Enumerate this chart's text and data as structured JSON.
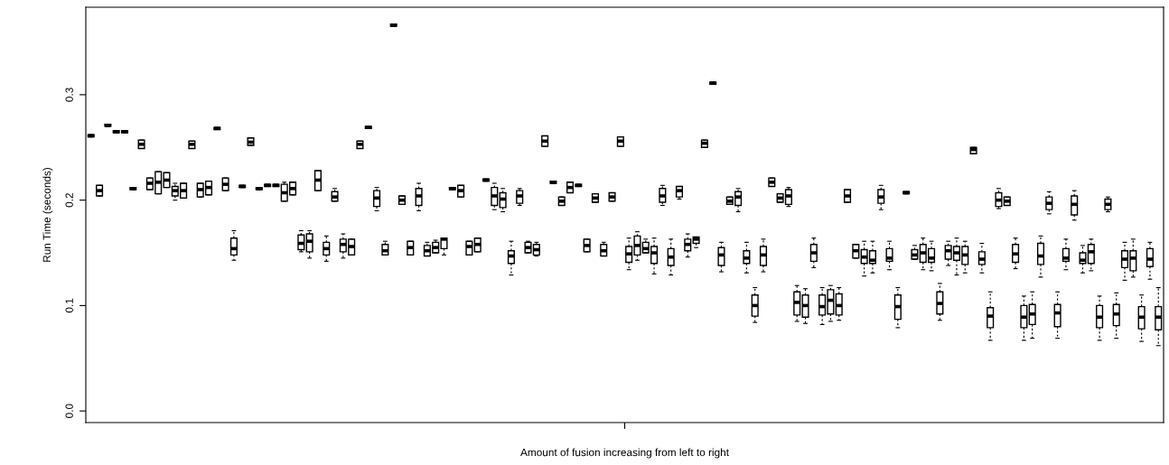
{
  "chart_data": {
    "type": "box",
    "xlabel": "Amount of fusion increasing from left to right",
    "ylabel": "Run Time (seconds)",
    "categories": [
      null,
      null,
      null,
      null,
      null,
      null,
      null,
      null,
      null,
      null,
      null,
      null,
      null,
      null,
      null,
      null,
      null,
      null,
      null,
      null,
      null,
      null,
      null,
      null,
      null,
      null,
      null,
      null,
      null,
      null,
      null,
      null,
      null,
      null,
      null,
      null,
      null,
      null,
      null,
      null,
      null,
      null,
      null,
      null,
      null,
      null,
      null,
      null,
      null,
      null,
      null,
      null,
      null,
      null,
      null,
      null,
      null,
      null,
      null,
      null,
      null,
      null,
      null,
      null,
      null,
      null,
      null,
      null,
      null,
      null,
      null,
      null,
      null,
      null,
      null,
      null,
      null,
      null,
      null,
      null,
      null,
      null,
      null,
      null,
      null,
      null,
      null,
      null,
      null,
      null,
      null,
      null,
      null,
      null,
      null,
      null,
      null,
      null,
      null,
      null,
      null,
      null,
      null,
      null,
      null,
      null,
      null,
      null,
      null,
      null,
      null,
      null,
      null,
      null,
      null,
      null,
      null,
      null,
      null,
      null,
      null,
      null,
      null,
      null,
      null,
      null,
      null,
      null
    ],
    "ylim": [
      -0.011,
      0.383
    ],
    "yticks": [
      {
        "value": 0,
        "label": "0.0"
      },
      {
        "value": 0.1,
        "label": "0.1"
      },
      {
        "value": 0.2,
        "label": "0.2"
      },
      {
        "value": 0.3,
        "label": "0.3"
      }
    ],
    "tick_labels": "y",
    "boxes": [
      {
        "low": 0.26,
        "q1": 0.26,
        "median": 0.261,
        "q3": 0.262,
        "high": 0.262
      },
      {
        "low": 0.204,
        "q1": 0.204,
        "median": 0.209,
        "q3": 0.214,
        "high": 0.214
      },
      {
        "low": 0.27,
        "q1": 0.27,
        "median": 0.271,
        "q3": 0.272,
        "high": 0.272
      },
      {
        "low": 0.264,
        "q1": 0.264,
        "median": 0.265,
        "q3": 0.266,
        "high": 0.266
      },
      {
        "low": 0.264,
        "q1": 0.264,
        "median": 0.265,
        "q3": 0.266,
        "high": 0.266
      },
      {
        "low": 0.21,
        "q1": 0.21,
        "median": 0.211,
        "q3": 0.212,
        "high": 0.212
      },
      {
        "low": 0.249,
        "q1": 0.249,
        "median": 0.253,
        "q3": 0.257,
        "high": 0.257
      },
      {
        "low": 0.21,
        "q1": 0.21,
        "median": 0.216,
        "q3": 0.221,
        "high": 0.221
      },
      {
        "low": 0.206,
        "q1": 0.206,
        "median": 0.217,
        "q3": 0.227,
        "high": 0.227
      },
      {
        "low": 0.212,
        "q1": 0.212,
        "median": 0.219,
        "q3": 0.226,
        "high": 0.226
      },
      {
        "low": 0.2,
        "q1": 0.204,
        "median": 0.209,
        "q3": 0.213,
        "high": 0.216
      },
      {
        "low": 0.202,
        "q1": 0.202,
        "median": 0.209,
        "q3": 0.216,
        "high": 0.216
      },
      {
        "low": 0.249,
        "q1": 0.249,
        "median": 0.253,
        "q3": 0.256,
        "high": 0.256
      },
      {
        "low": 0.203,
        "q1": 0.203,
        "median": 0.21,
        "q3": 0.216,
        "high": 0.216
      },
      {
        "low": 0.205,
        "q1": 0.205,
        "median": 0.212,
        "q3": 0.218,
        "high": 0.218
      },
      {
        "low": 0.267,
        "q1": 0.267,
        "median": 0.268,
        "q3": 0.269,
        "high": 0.269
      },
      {
        "low": 0.209,
        "q1": 0.209,
        "median": 0.215,
        "q3": 0.221,
        "high": 0.221
      },
      {
        "low": 0.143,
        "q1": 0.148,
        "median": 0.154,
        "q3": 0.164,
        "high": 0.171
      },
      {
        "low": 0.212,
        "q1": 0.212,
        "median": 0.213,
        "q3": 0.214,
        "high": 0.214
      },
      {
        "low": 0.252,
        "q1": 0.252,
        "median": 0.255,
        "q3": 0.259,
        "high": 0.259
      },
      {
        "low": 0.21,
        "q1": 0.21,
        "median": 0.211,
        "q3": 0.212,
        "high": 0.212
      },
      {
        "low": 0.213,
        "q1": 0.213,
        "median": 0.214,
        "q3": 0.215,
        "high": 0.215
      },
      {
        "low": 0.213,
        "q1": 0.213,
        "median": 0.214,
        "q3": 0.215,
        "high": 0.215
      },
      {
        "low": 0.199,
        "q1": 0.199,
        "median": 0.207,
        "q3": 0.215,
        "high": 0.217
      },
      {
        "low": 0.205,
        "q1": 0.205,
        "median": 0.211,
        "q3": 0.217,
        "high": 0.217
      },
      {
        "low": 0.151,
        "q1": 0.153,
        "median": 0.159,
        "q3": 0.167,
        "high": 0.171
      },
      {
        "low": 0.145,
        "q1": 0.151,
        "median": 0.161,
        "q3": 0.168,
        "high": 0.171
      },
      {
        "low": 0.209,
        "q1": 0.209,
        "median": 0.219,
        "q3": 0.228,
        "high": 0.228
      },
      {
        "low": 0.142,
        "q1": 0.148,
        "median": 0.154,
        "q3": 0.16,
        "high": 0.166
      },
      {
        "low": 0.199,
        "q1": 0.199,
        "median": 0.203,
        "q3": 0.208,
        "high": 0.211
      },
      {
        "low": 0.145,
        "q1": 0.151,
        "median": 0.158,
        "q3": 0.163,
        "high": 0.168
      },
      {
        "low": 0.148,
        "q1": 0.148,
        "median": 0.156,
        "q3": 0.163,
        "high": 0.163
      },
      {
        "low": 0.249,
        "q1": 0.249,
        "median": 0.253,
        "q3": 0.256,
        "high": 0.256
      },
      {
        "low": 0.268,
        "q1": 0.268,
        "median": 0.269,
        "q3": 0.27,
        "high": 0.27
      },
      {
        "low": 0.19,
        "q1": 0.194,
        "median": 0.202,
        "q3": 0.209,
        "high": 0.212
      },
      {
        "low": 0.148,
        "q1": 0.148,
        "median": 0.152,
        "q3": 0.158,
        "high": 0.161
      },
      {
        "low": 0.365,
        "q1": 0.365,
        "median": 0.366,
        "q3": 0.367,
        "high": 0.367
      },
      {
        "low": 0.196,
        "q1": 0.196,
        "median": 0.2,
        "q3": 0.204,
        "high": 0.204
      },
      {
        "low": 0.148,
        "q1": 0.148,
        "median": 0.155,
        "q3": 0.161,
        "high": 0.161
      },
      {
        "low": 0.19,
        "q1": 0.195,
        "median": 0.204,
        "q3": 0.211,
        "high": 0.216
      },
      {
        "low": 0.147,
        "q1": 0.147,
        "median": 0.152,
        "q3": 0.157,
        "high": 0.16
      },
      {
        "low": 0.15,
        "q1": 0.15,
        "median": 0.155,
        "q3": 0.16,
        "high": 0.162
      },
      {
        "low": 0.148,
        "q1": 0.154,
        "median": 0.163,
        "q3": 0.164,
        "high": 0.164
      },
      {
        "low": 0.21,
        "q1": 0.21,
        "median": 0.211,
        "q3": 0.212,
        "high": 0.212
      },
      {
        "low": 0.203,
        "q1": 0.203,
        "median": 0.209,
        "q3": 0.214,
        "high": 0.214
      },
      {
        "low": 0.148,
        "q1": 0.148,
        "median": 0.156,
        "q3": 0.161,
        "high": 0.161
      },
      {
        "low": 0.151,
        "q1": 0.151,
        "median": 0.158,
        "q3": 0.164,
        "high": 0.164
      },
      {
        "low": 0.218,
        "q1": 0.218,
        "median": 0.219,
        "q3": 0.22,
        "high": 0.22
      },
      {
        "low": 0.191,
        "q1": 0.195,
        "median": 0.204,
        "q3": 0.212,
        "high": 0.216
      },
      {
        "low": 0.189,
        "q1": 0.193,
        "median": 0.201,
        "q3": 0.207,
        "high": 0.211
      },
      {
        "low": 0.129,
        "q1": 0.14,
        "median": 0.147,
        "q3": 0.152,
        "high": 0.161
      },
      {
        "low": 0.195,
        "q1": 0.197,
        "median": 0.204,
        "q3": 0.209,
        "high": 0.211
      },
      {
        "low": 0.15,
        "q1": 0.15,
        "median": 0.155,
        "q3": 0.16,
        "high": 0.161
      },
      {
        "low": 0.147,
        "q1": 0.148,
        "median": 0.153,
        "q3": 0.158,
        "high": 0.16
      },
      {
        "low": 0.251,
        "q1": 0.251,
        "median": 0.256,
        "q3": 0.261,
        "high": 0.261
      },
      {
        "low": 0.216,
        "q1": 0.216,
        "median": 0.217,
        "q3": 0.218,
        "high": 0.218
      },
      {
        "low": 0.195,
        "q1": 0.195,
        "median": 0.199,
        "q3": 0.203,
        "high": 0.203
      },
      {
        "low": 0.207,
        "q1": 0.207,
        "median": 0.212,
        "q3": 0.217,
        "high": 0.217
      },
      {
        "low": 0.213,
        "q1": 0.213,
        "median": 0.214,
        "q3": 0.215,
        "high": 0.215
      },
      {
        "low": 0.151,
        "q1": 0.151,
        "median": 0.157,
        "q3": 0.163,
        "high": 0.163
      },
      {
        "low": 0.198,
        "q1": 0.198,
        "median": 0.202,
        "q3": 0.206,
        "high": 0.206
      },
      {
        "low": 0.147,
        "q1": 0.147,
        "median": 0.152,
        "q3": 0.158,
        "high": 0.16
      },
      {
        "low": 0.199,
        "q1": 0.199,
        "median": 0.203,
        "q3": 0.207,
        "high": 0.207
      },
      {
        "low": 0.251,
        "q1": 0.251,
        "median": 0.256,
        "q3": 0.26,
        "high": 0.26
      },
      {
        "low": 0.134,
        "q1": 0.141,
        "median": 0.149,
        "q3": 0.156,
        "high": 0.164
      },
      {
        "low": 0.143,
        "q1": 0.148,
        "median": 0.157,
        "q3": 0.166,
        "high": 0.17
      },
      {
        "low": 0.15,
        "q1": 0.15,
        "median": 0.154,
        "q3": 0.16,
        "high": 0.163
      },
      {
        "low": 0.13,
        "q1": 0.14,
        "median": 0.15,
        "q3": 0.156,
        "high": 0.164
      },
      {
        "low": 0.195,
        "q1": 0.198,
        "median": 0.204,
        "q3": 0.211,
        "high": 0.214
      },
      {
        "low": 0.129,
        "q1": 0.138,
        "median": 0.146,
        "q3": 0.154,
        "high": 0.163
      },
      {
        "low": 0.201,
        "q1": 0.203,
        "median": 0.209,
        "q3": 0.213,
        "high": 0.213
      },
      {
        "low": 0.146,
        "q1": 0.152,
        "median": 0.158,
        "q3": 0.163,
        "high": 0.168
      },
      {
        "low": 0.155,
        "q1": 0.159,
        "median": 0.163,
        "q3": 0.165,
        "high": 0.165
      },
      {
        "low": 0.25,
        "q1": 0.25,
        "median": 0.254,
        "q3": 0.257,
        "high": 0.257
      },
      {
        "low": 0.31,
        "q1": 0.31,
        "median": 0.311,
        "q3": 0.312,
        "high": 0.312
      },
      {
        "low": 0.132,
        "q1": 0.138,
        "median": 0.148,
        "q3": 0.155,
        "high": 0.16
      },
      {
        "low": 0.196,
        "q1": 0.196,
        "median": 0.199,
        "q3": 0.203,
        "high": 0.203
      },
      {
        "low": 0.189,
        "q1": 0.195,
        "median": 0.203,
        "q3": 0.208,
        "high": 0.211
      },
      {
        "low": 0.131,
        "q1": 0.14,
        "median": 0.145,
        "q3": 0.152,
        "high": 0.16
      },
      {
        "low": 0.084,
        "q1": 0.09,
        "median": 0.1,
        "q3": 0.11,
        "high": 0.117
      },
      {
        "low": 0.132,
        "q1": 0.138,
        "median": 0.148,
        "q3": 0.156,
        "high": 0.163
      },
      {
        "low": 0.213,
        "q1": 0.213,
        "median": 0.217,
        "q3": 0.221,
        "high": 0.221
      },
      {
        "low": 0.198,
        "q1": 0.198,
        "median": 0.202,
        "q3": 0.206,
        "high": 0.206
      },
      {
        "low": 0.194,
        "q1": 0.196,
        "median": 0.204,
        "q3": 0.21,
        "high": 0.212
      },
      {
        "low": 0.085,
        "q1": 0.091,
        "median": 0.103,
        "q3": 0.113,
        "high": 0.119
      },
      {
        "low": 0.083,
        "q1": 0.089,
        "median": 0.1,
        "q3": 0.11,
        "high": 0.116
      },
      {
        "low": 0.136,
        "q1": 0.142,
        "median": 0.15,
        "q3": 0.158,
        "high": 0.164
      },
      {
        "low": 0.082,
        "q1": 0.091,
        "median": 0.099,
        "q3": 0.11,
        "high": 0.117
      },
      {
        "low": 0.085,
        "q1": 0.092,
        "median": 0.105,
        "q3": 0.115,
        "high": 0.119
      },
      {
        "low": 0.086,
        "q1": 0.091,
        "median": 0.1,
        "q3": 0.111,
        "high": 0.117
      },
      {
        "low": 0.198,
        "q1": 0.198,
        "median": 0.204,
        "q3": 0.21,
        "high": 0.21
      },
      {
        "low": 0.145,
        "q1": 0.145,
        "median": 0.152,
        "q3": 0.158,
        "high": 0.158
      },
      {
        "low": 0.128,
        "q1": 0.14,
        "median": 0.146,
        "q3": 0.153,
        "high": 0.161
      },
      {
        "low": 0.131,
        "q1": 0.14,
        "median": 0.143,
        "q3": 0.152,
        "high": 0.161
      },
      {
        "low": 0.191,
        "q1": 0.197,
        "median": 0.203,
        "q3": 0.21,
        "high": 0.214
      },
      {
        "low": 0.134,
        "q1": 0.142,
        "median": 0.145,
        "q3": 0.154,
        "high": 0.161
      },
      {
        "low": 0.079,
        "q1": 0.087,
        "median": 0.099,
        "q3": 0.11,
        "high": 0.117
      },
      {
        "low": 0.206,
        "q1": 0.206,
        "median": 0.207,
        "q3": 0.208,
        "high": 0.208
      },
      {
        "low": 0.144,
        "q1": 0.144,
        "median": 0.148,
        "q3": 0.153,
        "high": 0.157
      },
      {
        "low": 0.134,
        "q1": 0.141,
        "median": 0.15,
        "q3": 0.158,
        "high": 0.164
      },
      {
        "low": 0.133,
        "q1": 0.141,
        "median": 0.145,
        "q3": 0.154,
        "high": 0.161
      },
      {
        "low": 0.086,
        "q1": 0.092,
        "median": 0.102,
        "q3": 0.113,
        "high": 0.121
      },
      {
        "low": 0.138,
        "q1": 0.144,
        "median": 0.152,
        "q3": 0.157,
        "high": 0.161
      },
      {
        "low": 0.129,
        "q1": 0.143,
        "median": 0.15,
        "q3": 0.156,
        "high": 0.164
      },
      {
        "low": 0.131,
        "q1": 0.139,
        "median": 0.148,
        "q3": 0.156,
        "high": 0.161
      },
      {
        "low": 0.244,
        "q1": 0.244,
        "median": 0.248,
        "q3": 0.25,
        "high": 0.25
      },
      {
        "low": 0.131,
        "q1": 0.139,
        "median": 0.144,
        "q3": 0.151,
        "high": 0.159
      },
      {
        "low": 0.067,
        "q1": 0.079,
        "median": 0.09,
        "q3": 0.098,
        "high": 0.113
      },
      {
        "low": 0.192,
        "q1": 0.194,
        "median": 0.2,
        "q3": 0.207,
        "high": 0.211
      },
      {
        "low": 0.195,
        "q1": 0.195,
        "median": 0.199,
        "q3": 0.203,
        "high": 0.203
      },
      {
        "low": 0.135,
        "q1": 0.141,
        "median": 0.149,
        "q3": 0.158,
        "high": 0.164
      },
      {
        "low": 0.067,
        "q1": 0.079,
        "median": 0.089,
        "q3": 0.1,
        "high": 0.109
      },
      {
        "low": 0.069,
        "q1": 0.082,
        "median": 0.092,
        "q3": 0.101,
        "high": 0.113
      },
      {
        "low": 0.127,
        "q1": 0.139,
        "median": 0.147,
        "q3": 0.159,
        "high": 0.166
      },
      {
        "low": 0.187,
        "q1": 0.191,
        "median": 0.197,
        "q3": 0.203,
        "high": 0.208
      },
      {
        "low": 0.069,
        "q1": 0.08,
        "median": 0.093,
        "q3": 0.101,
        "high": 0.113
      },
      {
        "low": 0.134,
        "q1": 0.142,
        "median": 0.145,
        "q3": 0.154,
        "high": 0.163
      },
      {
        "low": 0.181,
        "q1": 0.186,
        "median": 0.196,
        "q3": 0.204,
        "high": 0.209
      },
      {
        "low": 0.131,
        "q1": 0.14,
        "median": 0.143,
        "q3": 0.15,
        "high": 0.157
      },
      {
        "low": 0.133,
        "q1": 0.14,
        "median": 0.151,
        "q3": 0.158,
        "high": 0.163
      },
      {
        "low": 0.067,
        "q1": 0.079,
        "median": 0.089,
        "q3": 0.1,
        "high": 0.109
      },
      {
        "low": 0.189,
        "q1": 0.191,
        "median": 0.196,
        "q3": 0.201,
        "high": 0.203
      },
      {
        "low": 0.069,
        "q1": 0.081,
        "median": 0.092,
        "q3": 0.101,
        "high": 0.112
      },
      {
        "low": 0.124,
        "q1": 0.136,
        "median": 0.144,
        "q3": 0.152,
        "high": 0.16
      },
      {
        "low": 0.127,
        "q1": 0.133,
        "median": 0.145,
        "q3": 0.152,
        "high": 0.163
      },
      {
        "low": 0.066,
        "q1": 0.078,
        "median": 0.089,
        "q3": 0.099,
        "high": 0.11
      },
      {
        "low": 0.125,
        "q1": 0.137,
        "median": 0.144,
        "q3": 0.154,
        "high": 0.16
      },
      {
        "low": 0.062,
        "q1": 0.077,
        "median": 0.089,
        "q3": 0.099,
        "high": 0.117
      }
    ]
  }
}
